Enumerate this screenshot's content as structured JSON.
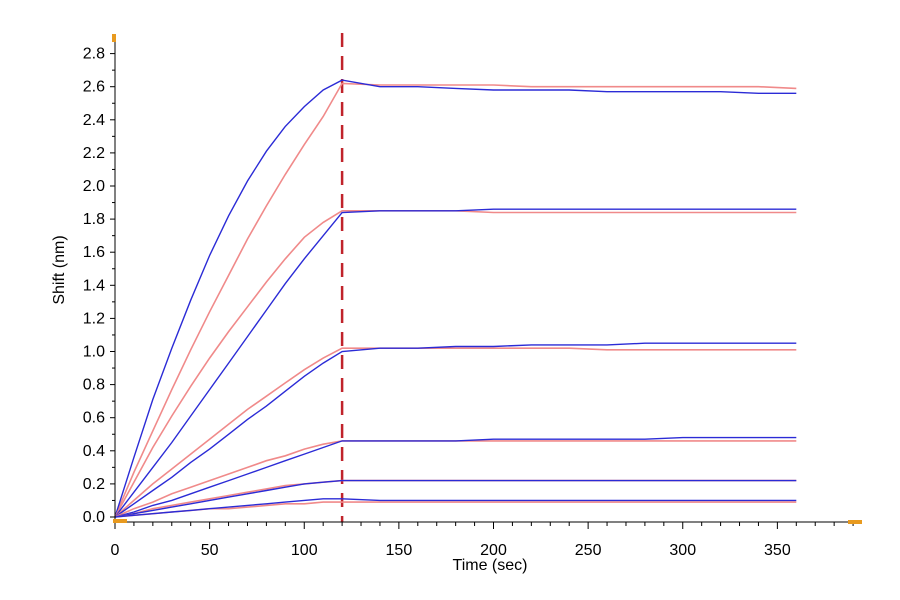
{
  "chart_data": {
    "type": "line",
    "title": "",
    "xlabel": "Time (sec)",
    "ylabel": "Shift (nm)",
    "xlim": [
      0,
      395
    ],
    "ylim": [
      0,
      2.9
    ],
    "xticks": [
      0,
      50,
      100,
      150,
      200,
      250,
      300,
      350
    ],
    "yticks": [
      0.0,
      0.2,
      0.4,
      0.6,
      0.8,
      1.0,
      1.2,
      1.4,
      1.6,
      1.8,
      2.0,
      2.2,
      2.4,
      2.6,
      2.8
    ],
    "ytick_labels": [
      "0.0",
      "0.2",
      "0.4",
      "0.6",
      "0.8",
      "1.0",
      "1.2",
      "1.4",
      "1.6",
      "1.8",
      "2.0",
      "2.2",
      "2.4",
      "2.6",
      "2.8"
    ],
    "vline": {
      "x": 120,
      "color": "#c0232b",
      "style": "dashed"
    },
    "grid": false,
    "legend": "none",
    "colors": {
      "measured": "#2b2bd6",
      "fit": "#f08a8a",
      "axis_marker": "#e89a1f"
    },
    "x_end": 360,
    "series": [
      {
        "x": [
          0,
          10,
          20,
          30,
          40,
          50,
          60,
          70,
          80,
          90,
          100,
          110,
          120,
          140,
          160,
          180,
          200,
          220,
          240,
          260,
          280,
          300,
          320,
          340,
          360
        ],
        "measured": [
          0,
          0.36,
          0.71,
          1.02,
          1.31,
          1.58,
          1.82,
          2.03,
          2.21,
          2.36,
          2.48,
          2.58,
          2.64,
          2.6,
          2.6,
          2.59,
          2.58,
          2.58,
          2.58,
          2.57,
          2.57,
          2.57,
          2.57,
          2.56,
          2.56
        ],
        "fit": [
          0,
          0.27,
          0.52,
          0.77,
          1.01,
          1.24,
          1.46,
          1.68,
          1.88,
          2.07,
          2.25,
          2.42,
          2.62,
          2.61,
          2.61,
          2.61,
          2.61,
          2.6,
          2.6,
          2.6,
          2.6,
          2.6,
          2.6,
          2.6,
          2.59
        ]
      },
      {
        "x": [
          0,
          10,
          20,
          30,
          40,
          50,
          60,
          70,
          80,
          90,
          100,
          110,
          120,
          140,
          160,
          180,
          200,
          220,
          240,
          260,
          280,
          300,
          320,
          340,
          360
        ],
        "measured": [
          0,
          0.15,
          0.3,
          0.45,
          0.61,
          0.77,
          0.93,
          1.09,
          1.25,
          1.41,
          1.56,
          1.7,
          1.84,
          1.85,
          1.85,
          1.85,
          1.86,
          1.86,
          1.86,
          1.86,
          1.86,
          1.86,
          1.86,
          1.86,
          1.86
        ],
        "fit": [
          0,
          0.21,
          0.42,
          0.61,
          0.79,
          0.96,
          1.12,
          1.27,
          1.42,
          1.56,
          1.69,
          1.78,
          1.85,
          1.85,
          1.85,
          1.85,
          1.84,
          1.84,
          1.84,
          1.84,
          1.84,
          1.84,
          1.84,
          1.84,
          1.84
        ]
      },
      {
        "x": [
          0,
          10,
          20,
          30,
          40,
          50,
          60,
          70,
          80,
          90,
          100,
          110,
          120,
          140,
          160,
          180,
          200,
          220,
          240,
          260,
          280,
          300,
          320,
          340,
          360
        ],
        "measured": [
          0,
          0.08,
          0.16,
          0.24,
          0.33,
          0.41,
          0.5,
          0.59,
          0.67,
          0.76,
          0.85,
          0.93,
          1.0,
          1.02,
          1.02,
          1.03,
          1.03,
          1.04,
          1.04,
          1.04,
          1.05,
          1.05,
          1.05,
          1.05,
          1.05
        ],
        "fit": [
          0,
          0.1,
          0.2,
          0.29,
          0.38,
          0.47,
          0.56,
          0.65,
          0.73,
          0.81,
          0.89,
          0.96,
          1.02,
          1.02,
          1.02,
          1.02,
          1.02,
          1.02,
          1.02,
          1.01,
          1.01,
          1.01,
          1.01,
          1.01,
          1.01
        ]
      },
      {
        "x": [
          0,
          10,
          20,
          30,
          40,
          50,
          60,
          70,
          80,
          90,
          100,
          110,
          120,
          140,
          160,
          180,
          200,
          220,
          240,
          260,
          280,
          300,
          320,
          340,
          360
        ],
        "measured": [
          0,
          0.03,
          0.07,
          0.1,
          0.14,
          0.18,
          0.22,
          0.26,
          0.3,
          0.34,
          0.38,
          0.42,
          0.46,
          0.46,
          0.46,
          0.46,
          0.47,
          0.47,
          0.47,
          0.47,
          0.47,
          0.48,
          0.48,
          0.48,
          0.48
        ],
        "fit": [
          0,
          0.05,
          0.09,
          0.14,
          0.18,
          0.22,
          0.26,
          0.3,
          0.34,
          0.37,
          0.41,
          0.44,
          0.46,
          0.46,
          0.46,
          0.46,
          0.46,
          0.46,
          0.46,
          0.46,
          0.46,
          0.46,
          0.46,
          0.46,
          0.46
        ]
      },
      {
        "x": [
          0,
          10,
          20,
          30,
          40,
          50,
          60,
          70,
          80,
          90,
          100,
          110,
          120,
          140,
          160,
          180,
          200,
          220,
          240,
          260,
          280,
          300,
          320,
          340,
          360
        ],
        "measured": [
          0,
          0.02,
          0.04,
          0.06,
          0.08,
          0.1,
          0.12,
          0.14,
          0.16,
          0.18,
          0.2,
          0.21,
          0.22,
          0.22,
          0.22,
          0.22,
          0.22,
          0.22,
          0.22,
          0.22,
          0.22,
          0.22,
          0.22,
          0.22,
          0.22
        ],
        "fit": [
          0,
          0.02,
          0.05,
          0.07,
          0.09,
          0.11,
          0.13,
          0.15,
          0.17,
          0.19,
          0.2,
          0.21,
          0.22,
          0.22,
          0.22,
          0.22,
          0.22,
          0.22,
          0.22,
          0.22,
          0.22,
          0.22,
          0.22,
          0.22,
          0.22
        ]
      },
      {
        "x": [
          0,
          10,
          20,
          30,
          40,
          50,
          60,
          70,
          80,
          90,
          100,
          110,
          120,
          140,
          160,
          180,
          200,
          220,
          240,
          260,
          280,
          300,
          320,
          340,
          360
        ],
        "measured": [
          0,
          0.01,
          0.02,
          0.03,
          0.04,
          0.05,
          0.06,
          0.07,
          0.08,
          0.09,
          0.1,
          0.11,
          0.11,
          0.1,
          0.1,
          0.1,
          0.1,
          0.1,
          0.1,
          0.1,
          0.1,
          0.1,
          0.1,
          0.1,
          0.1
        ],
        "fit": [
          0,
          0.01,
          0.02,
          0.03,
          0.04,
          0.05,
          0.05,
          0.06,
          0.07,
          0.08,
          0.08,
          0.09,
          0.09,
          0.09,
          0.09,
          0.09,
          0.09,
          0.09,
          0.09,
          0.09,
          0.09,
          0.09,
          0.09,
          0.09,
          0.09
        ]
      }
    ]
  }
}
